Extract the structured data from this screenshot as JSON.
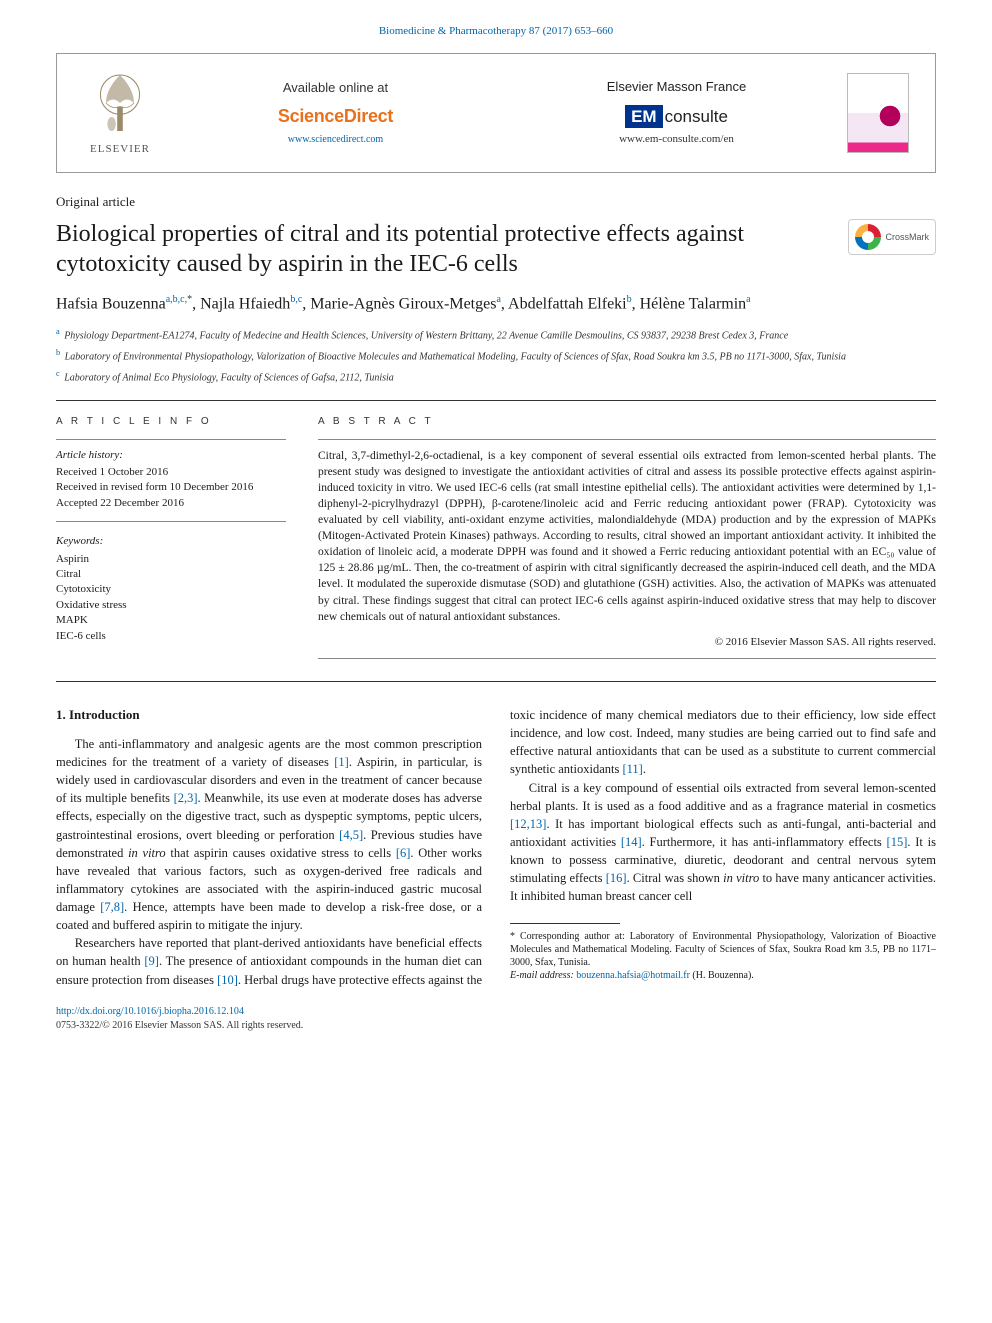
{
  "journal_header": "Biomedicine & Pharmacotherapy 87 (2017) 653–660",
  "topbox": {
    "elsevier_word": "ELSEVIER",
    "available": "Available online at",
    "sd_logo": "ScienceDirect",
    "sd_url": "www.sciencedirect.com",
    "em_france": "Elsevier Masson France",
    "em_prefix": "EM",
    "em_word": "consulte",
    "em_url": "www.em-consulte.com/en"
  },
  "article_type": "Original article",
  "title": "Biological properties of citral and its potential protective effects against cytotoxicity caused by aspirin in the IEC-6 cells",
  "crossmark": "CrossMark",
  "authors_html": "Hafsia Bouzenna<sup>a,b,c,</sup><sup class='corr'>*</sup>, Najla Hfaiedh<sup>b,c</sup>, Marie-Agnès Giroux-Metges<sup>a</sup>, Abdelfattah Elfeki<sup>b</sup>, Hélène Talarmin<sup>a</sup>",
  "affiliations": [
    {
      "sup": "a",
      "text": "Physiology Department-EA1274, Faculty of Medecine and Health Sciences, University of Western Brittany, 22 Avenue Camille Desmoulins, CS 93837, 29238 Brest Cedex 3, France"
    },
    {
      "sup": "b",
      "text": "Laboratory of Environmental Physiopathology, Valorization of Bioactive Molecules and Mathematical Modeling, Faculty of Sciences of Sfax, Road Soukra km 3.5, PB no 1171-3000, Sfax, Tunisia"
    },
    {
      "sup": "c",
      "text": "Laboratory of Animal Eco Physiology, Faculty of Sciences of Gafsa, 2112, Tunisia"
    }
  ],
  "info": {
    "heading": "A R T I C L E   I N F O",
    "history_label": "Article history:",
    "history": [
      "Received 1 October 2016",
      "Received in revised form 10 December 2016",
      "Accepted 22 December 2016"
    ],
    "keywords_label": "Keywords:",
    "keywords": [
      "Aspirin",
      "Citral",
      "Cytotoxicity",
      "Oxidative stress",
      "MAPK",
      "IEC-6 cells"
    ]
  },
  "abstract": {
    "heading": "A B S T R A C T",
    "text": "Citral, 3,7-dimethyl-2,6-octadienal, is a key component of several essential oils extracted from lemon-scented herbal plants. The present study was designed to investigate the antioxidant activities of citral and assess its possible protective effects against aspirin-induced toxicity in vitro. We used IEC-6 cells (rat small intestine epithelial cells). The antioxidant activities were determined by 1,1-diphenyl-2-picrylhydrazyl (DPPH), β-carotene/linoleic acid and Ferric reducing antioxidant power (FRAP). Cytotoxicity was evaluated by cell viability, anti-oxidant enzyme activities, malondialdehyde (MDA) production and by the expression of MAPKs (Mitogen-Activated Protein Kinases) pathways. According to results, citral showed an important antioxidant activity. It inhibited the oxidation of linoleic acid, a moderate DPPH was found and it showed a Ferric reducing antioxidant potential with an EC₅₀ value of 125 ± 28.86 µg/mL. Then, the co-treatment of aspirin with citral significantly decreased the aspirin-induced cell death, and the MDA level. It modulated the superoxide dismutase (SOD) and glutathione (GSH) activities. Also, the activation of MAPKs was attenuated by citral. These findings suggest that citral can protect IEC-6 cells against aspirin-induced oxidative stress that may help to discover new chemicals out of natural antioxidant substances.",
    "copyright": "© 2016 Elsevier Masson SAS. All rights reserved."
  },
  "body": {
    "h1": "1. Introduction",
    "p1": "The anti-inflammatory and analgesic agents are the most common prescription medicines for the treatment of a variety of diseases [1]. Aspirin, in particular, is widely used in cardiovascular disorders and even in the treatment of cancer because of its multiple benefits [2,3]. Meanwhile, its use even at moderate doses has adverse effects, especially on the digestive tract, such as dyspeptic symptoms, peptic ulcers, gastrointestinal erosions, overt bleeding or perforation [4,5]. Previous studies have demonstrated in vitro that aspirin causes oxidative stress to cells [6]. Other works have revealed that various factors, such as oxygen-derived free radicals and inflammatory cytokines are associated with the aspirin-induced gastric mucosal damage [7,8]. Hence, attempts have been made to develop a risk-free dose, or a coated and buffered aspirin to mitigate the injury.",
    "p2": "Researchers have reported that plant-derived antioxidants have beneficial effects on human health [9]. The presence of antioxidant compounds in the human diet can ensure protection from diseases [10]. Herbal drugs have protective effects against the toxic incidence of many chemical mediators due to their efficiency, low side effect incidence, and low cost. Indeed, many studies are being carried out to find safe and effective natural antioxidants that can be used as a substitute to current commercial synthetic antioxidants [11].",
    "p3": "Citral is a key compound of essential oils extracted from several lemon-scented herbal plants. It is used as a food additive and as a fragrance material in cosmetics [12,13]. It has important biological effects such as anti-fungal, anti-bacterial and antioxidant activities [14]. Furthermore, it has anti-inflammatory effects [15]. It is known to possess carminative, diuretic, deodorant and central nervous sytem stimulating effects [16]. Citral was shown in vitro to have many anticancer activities. It inhibited human breast cancer cell"
  },
  "footnote": {
    "corr": "* Corresponding author at: Laboratory of Environmental Physiopathology, Valorization of Bioactive Molecules and Mathematical Modeling. Faculty of Sciences of Sfax, Soukra Road km 3.5, PB no 1171–3000, Sfax, Tunisia.",
    "email_label": "E-mail address:",
    "email": "bouzenna.hafsia@hotmail.fr",
    "email_author": "(H. Bouzenna)."
  },
  "footer": {
    "doi": "http://dx.doi.org/10.1016/j.biopha.2016.12.104",
    "issn": "0753-3322/© 2016 Elsevier Masson SAS. All rights reserved."
  },
  "colors": {
    "link": "#0066aa",
    "sd_orange": "#e9711c",
    "em_blue": "#00338d"
  }
}
